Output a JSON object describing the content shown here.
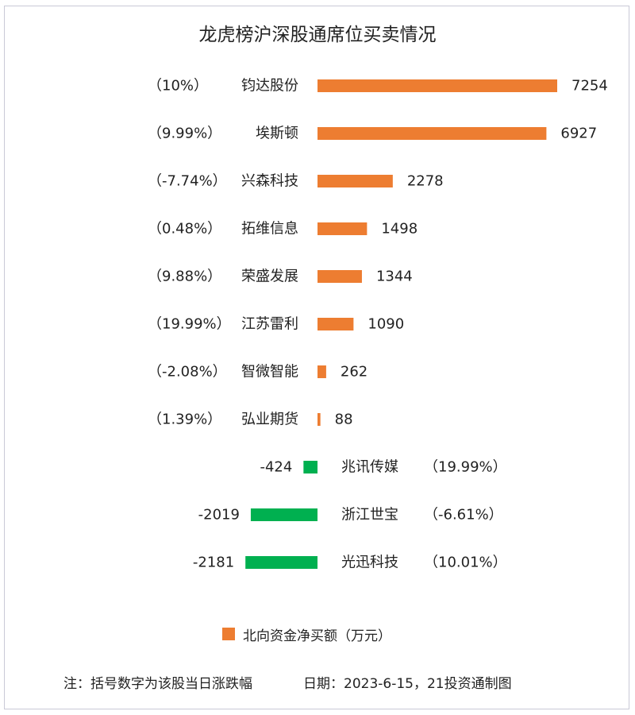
{
  "chart_data": {
    "type": "bar",
    "orientation": "horizontal",
    "title": "龙虎榜沪深股通席位买卖情况",
    "categories": [
      "钧达股份",
      "埃斯顿",
      "兴森科技",
      "拓维信息",
      "荣盛发展",
      "江苏雷利",
      "智微智能",
      "弘业期货",
      "兆讯传媒",
      "浙江世宝",
      "光迅科技"
    ],
    "change_labels": [
      "（10%）",
      "（9.99%）",
      "（-7.74%）",
      "（0.48%）",
      "（9.88%）",
      "（19.99%）",
      "（-2.08%）",
      "（1.39%）",
      "（19.99%）",
      "（-6.61%）",
      "（10.01%）"
    ],
    "series": [
      {
        "name": "北向资金净买额（万元）",
        "values": [
          7254,
          6927,
          2278,
          1498,
          1344,
          1090,
          262,
          88,
          -424,
          -2019,
          -2181
        ]
      }
    ],
    "colors": {
      "positive": "#ed7d31",
      "negative": "#00b050"
    },
    "legend_position": "bottom",
    "grid": false
  },
  "footer": {
    "note": "注：括号数字为该股当日涨跌幅",
    "date": "日期：2023-6-15，21投资通制图"
  }
}
